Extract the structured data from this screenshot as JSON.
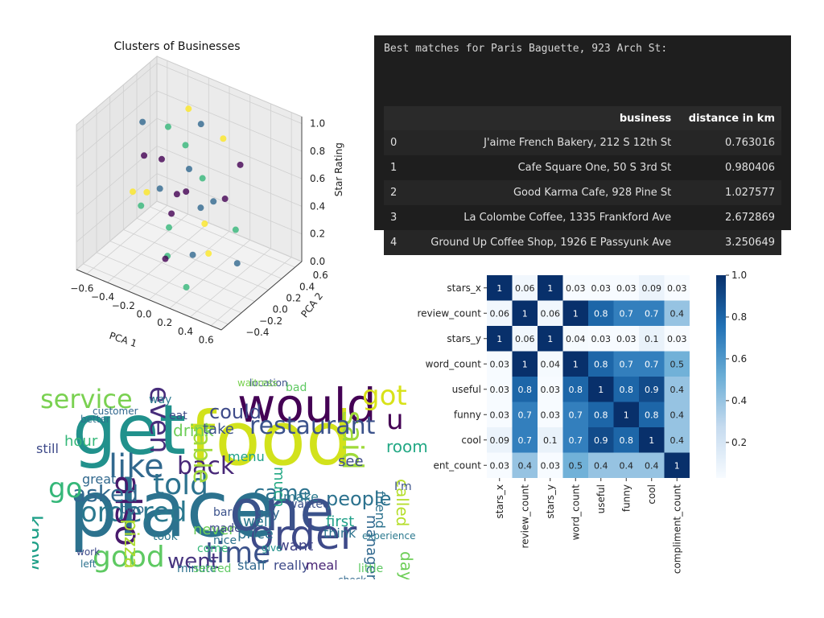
{
  "chart_data": [
    {
      "type": "scatter",
      "projection": "3d",
      "title": "Clusters of Businesses",
      "xlabel": "PCA 1",
      "ylabel": "PCA 2",
      "zlabel": "Star Rating",
      "x_ticks": [
        "−0.6",
        "−0.4",
        "−0.2",
        "0.0",
        "0.2",
        "0.4",
        "0.6"
      ],
      "y_ticks": [
        "−0.4",
        "−0.2",
        "0.0",
        "0.2",
        "0.4",
        "0.6"
      ],
      "z_ticks": [
        "0.0",
        "0.2",
        "0.4",
        "0.6",
        "0.8",
        "1.0"
      ],
      "xlim": [
        -0.7,
        0.7
      ],
      "ylim": [
        -0.5,
        0.7
      ],
      "zlim": [
        0,
        1.05
      ],
      "colormap": [
        "#440154",
        "#31688e",
        "#35b779",
        "#fde725"
      ],
      "points": [
        {
          "x": -0.45,
          "y": 0.1,
          "z": 0.9,
          "c": 1
        },
        {
          "x": -0.3,
          "y": 0.25,
          "z": 0.85,
          "c": 2
        },
        {
          "x": -0.2,
          "y": 0.0,
          "z": 0.75,
          "c": 0
        },
        {
          "x": -0.1,
          "y": 0.2,
          "z": 0.8,
          "c": 2
        },
        {
          "x": 0.0,
          "y": 0.1,
          "z": 0.7,
          "c": 1
        },
        {
          "x": 0.1,
          "y": -0.1,
          "z": 0.65,
          "c": 0
        },
        {
          "x": 0.2,
          "y": 0.3,
          "z": 0.9,
          "c": 3
        },
        {
          "x": 0.3,
          "y": 0.0,
          "z": 0.6,
          "c": 1
        },
        {
          "x": -0.35,
          "y": -0.2,
          "z": 0.55,
          "c": 3
        },
        {
          "x": -0.25,
          "y": 0.05,
          "z": 0.5,
          "c": 1
        },
        {
          "x": -0.15,
          "y": 0.15,
          "z": 0.45,
          "c": 0
        },
        {
          "x": 0.0,
          "y": -0.2,
          "z": 0.4,
          "c": 2
        },
        {
          "x": 0.15,
          "y": 0.1,
          "z": 0.35,
          "c": 3
        },
        {
          "x": 0.25,
          "y": 0.25,
          "z": 0.5,
          "c": 0
        },
        {
          "x": -0.05,
          "y": 0.35,
          "z": 0.3,
          "c": 1
        },
        {
          "x": 0.05,
          "y": -0.3,
          "z": 0.25,
          "c": 2
        },
        {
          "x": -0.3,
          "y": 0.3,
          "z": 0.2,
          "c": 0
        },
        {
          "x": 0.35,
          "y": -0.15,
          "z": 0.3,
          "c": 3
        },
        {
          "x": 0.1,
          "y": 0.0,
          "z": 0.15,
          "c": 1
        },
        {
          "x": -0.1,
          "y": -0.1,
          "z": 0.1,
          "c": 0
        },
        {
          "x": 0.2,
          "y": -0.25,
          "z": 0.05,
          "c": 2
        },
        {
          "x": 0.4,
          "y": 0.2,
          "z": 0.1,
          "c": 1
        },
        {
          "x": -0.4,
          "y": 0.0,
          "z": 0.35,
          "c": 2
        },
        {
          "x": 0.3,
          "y": 0.4,
          "z": 0.7,
          "c": 0
        },
        {
          "x": -0.2,
          "y": 0.4,
          "z": 0.95,
          "c": 3
        },
        {
          "x": 0.0,
          "y": 0.3,
          "z": 0.55,
          "c": 2
        },
        {
          "x": -0.5,
          "y": 0.2,
          "z": 0.6,
          "c": 0
        },
        {
          "x": 0.45,
          "y": 0.1,
          "z": 0.4,
          "c": 2
        },
        {
          "x": 0.05,
          "y": 0.2,
          "z": 1.0,
          "c": 1
        },
        {
          "x": -0.15,
          "y": -0.3,
          "z": 0.65,
          "c": 3
        }
      ]
    },
    {
      "type": "table",
      "heading": "Best matches for Paris Baguette, 923 Arch St:",
      "columns": [
        "",
        "business",
        "distance in km"
      ],
      "rows": [
        {
          "index": "0",
          "business": "J'aime French Bakery, 212 S 12th St",
          "distance": "0.763016"
        },
        {
          "index": "1",
          "business": "Cafe Square One, 50 S 3rd St",
          "distance": "0.980406"
        },
        {
          "index": "2",
          "business": "Good Karma Cafe, 928 Pine St",
          "distance": "1.027577"
        },
        {
          "index": "3",
          "business": "La Colombe Coffee, 1335 Frankford Ave",
          "distance": "2.672869"
        },
        {
          "index": "4",
          "business": "Ground Up Coffee Shop, 1926 E Passyunk Ave",
          "distance": "3.250649"
        }
      ]
    },
    {
      "type": "heatmap",
      "row_labels": [
        "stars_x",
        "review_count",
        "stars_y",
        "word_count",
        "useful",
        "funny",
        "cool",
        "compliment_count"
      ],
      "row_labels_visible": [
        "stars_x",
        "review_count",
        "stars_y",
        "word_count",
        "useful",
        "funny",
        "cool",
        "ent_count"
      ],
      "col_labels": [
        "stars_x",
        "review_count",
        "stars_y",
        "word_count",
        "useful",
        "funny",
        "cool",
        "compliment_count"
      ],
      "values": [
        [
          1,
          0.06,
          1,
          0.03,
          0.03,
          0.03,
          0.09,
          0.03
        ],
        [
          0.06,
          1,
          0.06,
          1,
          0.8,
          0.7,
          0.7,
          0.4
        ],
        [
          1,
          0.06,
          1,
          0.04,
          0.03,
          0.03,
          0.1,
          0.03
        ],
        [
          0.03,
          1,
          0.04,
          1,
          0.8,
          0.7,
          0.7,
          0.5
        ],
        [
          0.03,
          0.8,
          0.03,
          0.8,
          1,
          0.8,
          0.9,
          0.4
        ],
        [
          0.03,
          0.7,
          0.03,
          0.7,
          0.8,
          1,
          0.8,
          0.4
        ],
        [
          0.09,
          0.7,
          0.1,
          0.7,
          0.9,
          0.8,
          1,
          0.4
        ],
        [
          0.03,
          0.4,
          0.03,
          0.5,
          0.4,
          0.4,
          0.4,
          1
        ]
      ],
      "colorbar_ticks": [
        "0.2",
        "0.4",
        "0.6",
        "0.8",
        "1.0"
      ],
      "colorbar_range": [
        0.03,
        1.0
      ],
      "colormap": [
        "#f7fbff",
        "#c6dbef",
        "#6baed6",
        "#2171b5",
        "#08306b"
      ]
    },
    {
      "type": "wordcloud",
      "words": [
        {
          "text": "food",
          "color": "#d2e21b"
        },
        {
          "text": "place",
          "color": "#2c728e"
        },
        {
          "text": "one",
          "color": "#3b528b"
        },
        {
          "text": "get",
          "color": "#21918c"
        },
        {
          "text": "would",
          "color": "#440154"
        },
        {
          "text": "order",
          "color": "#3e4a89"
        },
        {
          "text": "service",
          "color": "#7ad151"
        },
        {
          "text": "like",
          "color": "#31688e"
        },
        {
          "text": "good",
          "color": "#5ec962"
        },
        {
          "text": "time",
          "color": "#3b528b"
        },
        {
          "text": "said",
          "color": "#9fda3a"
        },
        {
          "text": "told",
          "color": "#2c728e"
        },
        {
          "text": "ordered",
          "color": "#2a788e"
        },
        {
          "text": "even",
          "color": "#472d7b"
        },
        {
          "text": "got",
          "color": "#d8e219"
        },
        {
          "text": "restaurant",
          "color": "#3b528b"
        },
        {
          "text": "also",
          "color": "#481a6c"
        },
        {
          "text": "back",
          "color": "#482878"
        },
        {
          "text": "came",
          "color": "#2c728e"
        },
        {
          "text": "asked",
          "color": "#31688e"
        },
        {
          "text": "table",
          "color": "#a0da39"
        },
        {
          "text": "people",
          "color": "#2c728e"
        },
        {
          "text": "went",
          "color": "#46337e"
        },
        {
          "text": "could",
          "color": "#3e4a89"
        },
        {
          "text": "drink",
          "color": "#6ece58"
        },
        {
          "text": "go",
          "color": "#35b779"
        },
        {
          "text": "u",
          "color": "#440154"
        },
        {
          "text": "know",
          "color": "#1fa088"
        },
        {
          "text": "room",
          "color": "#22a884"
        },
        {
          "text": "take",
          "color": "#3b528b"
        },
        {
          "text": "pizza",
          "color": "#addc30"
        },
        {
          "text": "never",
          "color": "#6ece58"
        },
        {
          "text": "price",
          "color": "#2c728e"
        },
        {
          "text": "well",
          "color": "#2a788e"
        },
        {
          "text": "staff",
          "color": "#31688e"
        },
        {
          "text": "really",
          "color": "#3e4a89"
        },
        {
          "text": "meal",
          "color": "#482475"
        },
        {
          "text": "want",
          "color": "#414487"
        },
        {
          "text": "first",
          "color": "#1fa088"
        },
        {
          "text": "think",
          "color": "#2c728e"
        },
        {
          "text": "much",
          "color": "#22a884"
        },
        {
          "text": "say",
          "color": "#31688e"
        },
        {
          "text": "see",
          "color": "#3e4a89"
        },
        {
          "text": "make",
          "color": "#2a788e"
        },
        {
          "text": "wanted",
          "color": "#3b528b"
        },
        {
          "text": "great",
          "color": "#31688e"
        },
        {
          "text": "still",
          "color": "#3e4a89"
        },
        {
          "text": "hour",
          "color": "#35b779"
        },
        {
          "text": "minute",
          "color": "#2c728e"
        },
        {
          "text": "served",
          "color": "#5ec962"
        },
        {
          "text": "menu",
          "color": "#1fa088"
        },
        {
          "text": "called",
          "color": "#b5de2b"
        },
        {
          "text": "friend",
          "color": "#2c728e"
        },
        {
          "text": "I'm",
          "color": "#3b528b"
        },
        {
          "text": "manager",
          "color": "#31688e"
        },
        {
          "text": "day",
          "color": "#6ece58"
        },
        {
          "text": "way",
          "color": "#2a788e"
        },
        {
          "text": "eat",
          "color": "#3e4a89"
        },
        {
          "text": "two",
          "color": "#31688e"
        },
        {
          "text": "took",
          "color": "#2a788e"
        },
        {
          "text": "made",
          "color": "#3e4a89"
        },
        {
          "text": "nice",
          "color": "#2c728e"
        },
        {
          "text": "bar",
          "color": "#3b528b"
        },
        {
          "text": "come",
          "color": "#35b779"
        },
        {
          "text": "give",
          "color": "#21918c"
        },
        {
          "text": "bad",
          "color": "#5ec962"
        },
        {
          "text": "left",
          "color": "#2c728e"
        },
        {
          "text": "work",
          "color": "#3e4a89"
        },
        {
          "text": "check",
          "color": "#31688e"
        },
        {
          "text": "little",
          "color": "#5ec962"
        },
        {
          "text": "experience",
          "color": "#2a788e"
        },
        {
          "text": "location",
          "color": "#3b528b"
        },
        {
          "text": "waitress",
          "color": "#7ad151"
        },
        {
          "text": "better",
          "color": "#2c728e"
        },
        {
          "text": "customer",
          "color": "#31688e"
        }
      ]
    }
  ]
}
